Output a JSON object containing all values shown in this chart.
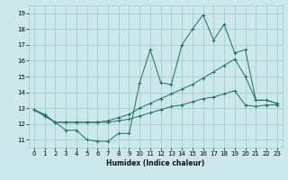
{
  "xlabel": "Humidex (Indice chaleur)",
  "xlim": [
    -0.5,
    23.5
  ],
  "ylim": [
    10.5,
    19.5
  ],
  "yticks": [
    11,
    12,
    13,
    14,
    15,
    16,
    17,
    18,
    19
  ],
  "xticks": [
    0,
    1,
    2,
    3,
    4,
    5,
    6,
    7,
    8,
    9,
    10,
    11,
    12,
    13,
    14,
    15,
    16,
    17,
    18,
    19,
    20,
    21,
    22,
    23
  ],
  "background_color": "#cde8eb",
  "grid_color": "#9cc8cc",
  "line_color": "#1a6e6a",
  "line1_x": [
    0,
    1,
    2,
    3,
    4,
    5,
    6,
    7,
    8,
    9,
    10,
    11,
    12,
    13,
    14,
    15,
    16,
    17,
    18,
    19,
    20,
    21,
    22,
    23
  ],
  "line1_y": [
    12.9,
    12.6,
    12.1,
    11.6,
    11.6,
    11.0,
    10.9,
    10.9,
    11.4,
    11.4,
    14.6,
    16.7,
    14.6,
    14.5,
    17.0,
    18.0,
    18.9,
    17.3,
    18.3,
    16.5,
    16.7,
    13.5,
    13.5,
    13.3
  ],
  "line2_x": [
    0,
    1,
    2,
    3,
    4,
    5,
    6,
    7,
    8,
    9,
    10,
    11,
    12,
    13,
    14,
    15,
    16,
    17,
    18,
    19,
    20,
    21,
    22,
    23
  ],
  "line2_y": [
    12.9,
    12.5,
    12.1,
    12.1,
    12.1,
    12.1,
    12.1,
    12.2,
    12.4,
    12.6,
    13.0,
    13.3,
    13.6,
    13.9,
    14.2,
    14.5,
    14.9,
    15.3,
    15.7,
    16.1,
    15.0,
    13.5,
    13.5,
    13.3
  ],
  "line3_x": [
    0,
    1,
    2,
    3,
    4,
    5,
    6,
    7,
    8,
    9,
    10,
    11,
    12,
    13,
    14,
    15,
    16,
    17,
    18,
    19,
    20,
    21,
    22,
    23
  ],
  "line3_y": [
    12.9,
    12.5,
    12.1,
    12.1,
    12.1,
    12.1,
    12.1,
    12.1,
    12.2,
    12.3,
    12.5,
    12.7,
    12.9,
    13.1,
    13.2,
    13.4,
    13.6,
    13.7,
    13.9,
    14.1,
    13.2,
    13.1,
    13.2,
    13.2
  ]
}
